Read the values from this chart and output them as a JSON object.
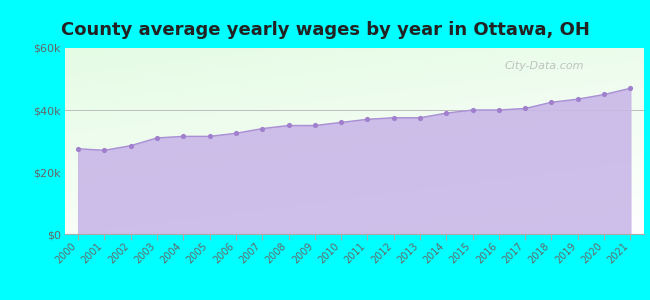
{
  "title": "County average yearly wages by year in Ottawa, OH",
  "years": [
    2000,
    2001,
    2002,
    2003,
    2004,
    2005,
    2006,
    2007,
    2008,
    2009,
    2010,
    2011,
    2012,
    2013,
    2014,
    2015,
    2016,
    2017,
    2018,
    2019,
    2020,
    2021
  ],
  "wages": [
    27500,
    27000,
    28500,
    31000,
    31500,
    31500,
    32500,
    34000,
    35000,
    35000,
    36000,
    37000,
    37500,
    37500,
    39000,
    40000,
    40000,
    40500,
    42500,
    43500,
    45000,
    47000
  ],
  "ylim": [
    0,
    60000
  ],
  "yticks": [
    0,
    20000,
    40000,
    60000
  ],
  "ytick_labels": [
    "$0",
    "$20k",
    "$40k",
    "$60k"
  ],
  "fill_color": "#c9b8e8",
  "line_color": "#a990d4",
  "marker_color": "#a080cc",
  "bg_color_fig": "#00ffff",
  "title_fontsize": 13,
  "watermark_text": "City-Data.com",
  "watermark_color": "#aaaaaa"
}
